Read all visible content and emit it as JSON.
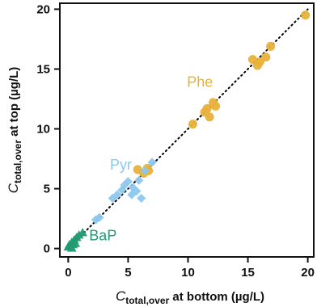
{
  "chart_data": {
    "type": "scatter",
    "xlabel": {
      "var": "C",
      "sub": "total,over",
      "rest": " at bottom (µg/L)"
    },
    "ylabel": {
      "var": "C",
      "sub": "total,over",
      "rest": " at top (µg/L)"
    },
    "xlim": [
      -0.7,
      20.5
    ],
    "ylim": [
      -0.7,
      20.5
    ],
    "xticks": [
      0,
      5,
      10,
      15,
      20
    ],
    "yticks": [
      0,
      5,
      10,
      15,
      20
    ],
    "reference_line": {
      "style": "dotted",
      "color": "#000000",
      "from": [
        0,
        0
      ],
      "to": [
        20,
        20
      ]
    },
    "series": [
      {
        "name": "Phe",
        "marker": "circle",
        "color": "#E8B13B",
        "points": [
          [
            5.8,
            6.6
          ],
          [
            6.3,
            6.3
          ],
          [
            6.6,
            6.7
          ],
          [
            6.7,
            6.5
          ],
          [
            10.4,
            10.4
          ],
          [
            11.4,
            11.4
          ],
          [
            11.6,
            11.7
          ],
          [
            11.8,
            11.0
          ],
          [
            12.1,
            12.2
          ],
          [
            12.3,
            11.9
          ],
          [
            15.4,
            15.8
          ],
          [
            15.8,
            15.3
          ],
          [
            16.0,
            15.6
          ],
          [
            16.5,
            16.0
          ],
          [
            16.9,
            16.9
          ],
          [
            19.8,
            19.5
          ]
        ]
      },
      {
        "name": "Pyr",
        "marker": "diamond",
        "color": "#8CC8EE",
        "points": [
          [
            2.3,
            2.4
          ],
          [
            2.6,
            2.6
          ],
          [
            3.7,
            4.2
          ],
          [
            4.1,
            4.5
          ],
          [
            4.5,
            4.9
          ],
          [
            4.7,
            5.3
          ],
          [
            5.0,
            5.6
          ],
          [
            5.4,
            5.1
          ],
          [
            5.7,
            4.8
          ],
          [
            5.9,
            5.7
          ],
          [
            6.1,
            4.2
          ],
          [
            6.4,
            6.5
          ],
          [
            7.0,
            7.2
          ],
          [
            5.3,
            4.5
          ]
        ]
      },
      {
        "name": "BaP",
        "marker": "triangle",
        "color": "#239A72",
        "points": [
          [
            0.0,
            0.1
          ],
          [
            0.1,
            0.3
          ],
          [
            0.2,
            0.2
          ],
          [
            0.3,
            0.5
          ],
          [
            0.4,
            0.3
          ],
          [
            0.5,
            0.7
          ],
          [
            0.6,
            0.4
          ],
          [
            0.7,
            0.9
          ],
          [
            0.9,
            1.1
          ],
          [
            1.2,
            1.3
          ],
          [
            0.3,
            0.0
          ]
        ]
      }
    ],
    "labels": [
      {
        "text": "Phe",
        "color": "#E8B13B",
        "x": 11.0,
        "y": 13.5,
        "anchor": "middle"
      },
      {
        "text": "Pyr",
        "color": "#8CC8EE",
        "x": 4.4,
        "y": 6.6,
        "anchor": "middle"
      },
      {
        "text": "BaP",
        "color": "#239A72",
        "x": 2.9,
        "y": 0.7,
        "anchor": "middle"
      }
    ]
  }
}
